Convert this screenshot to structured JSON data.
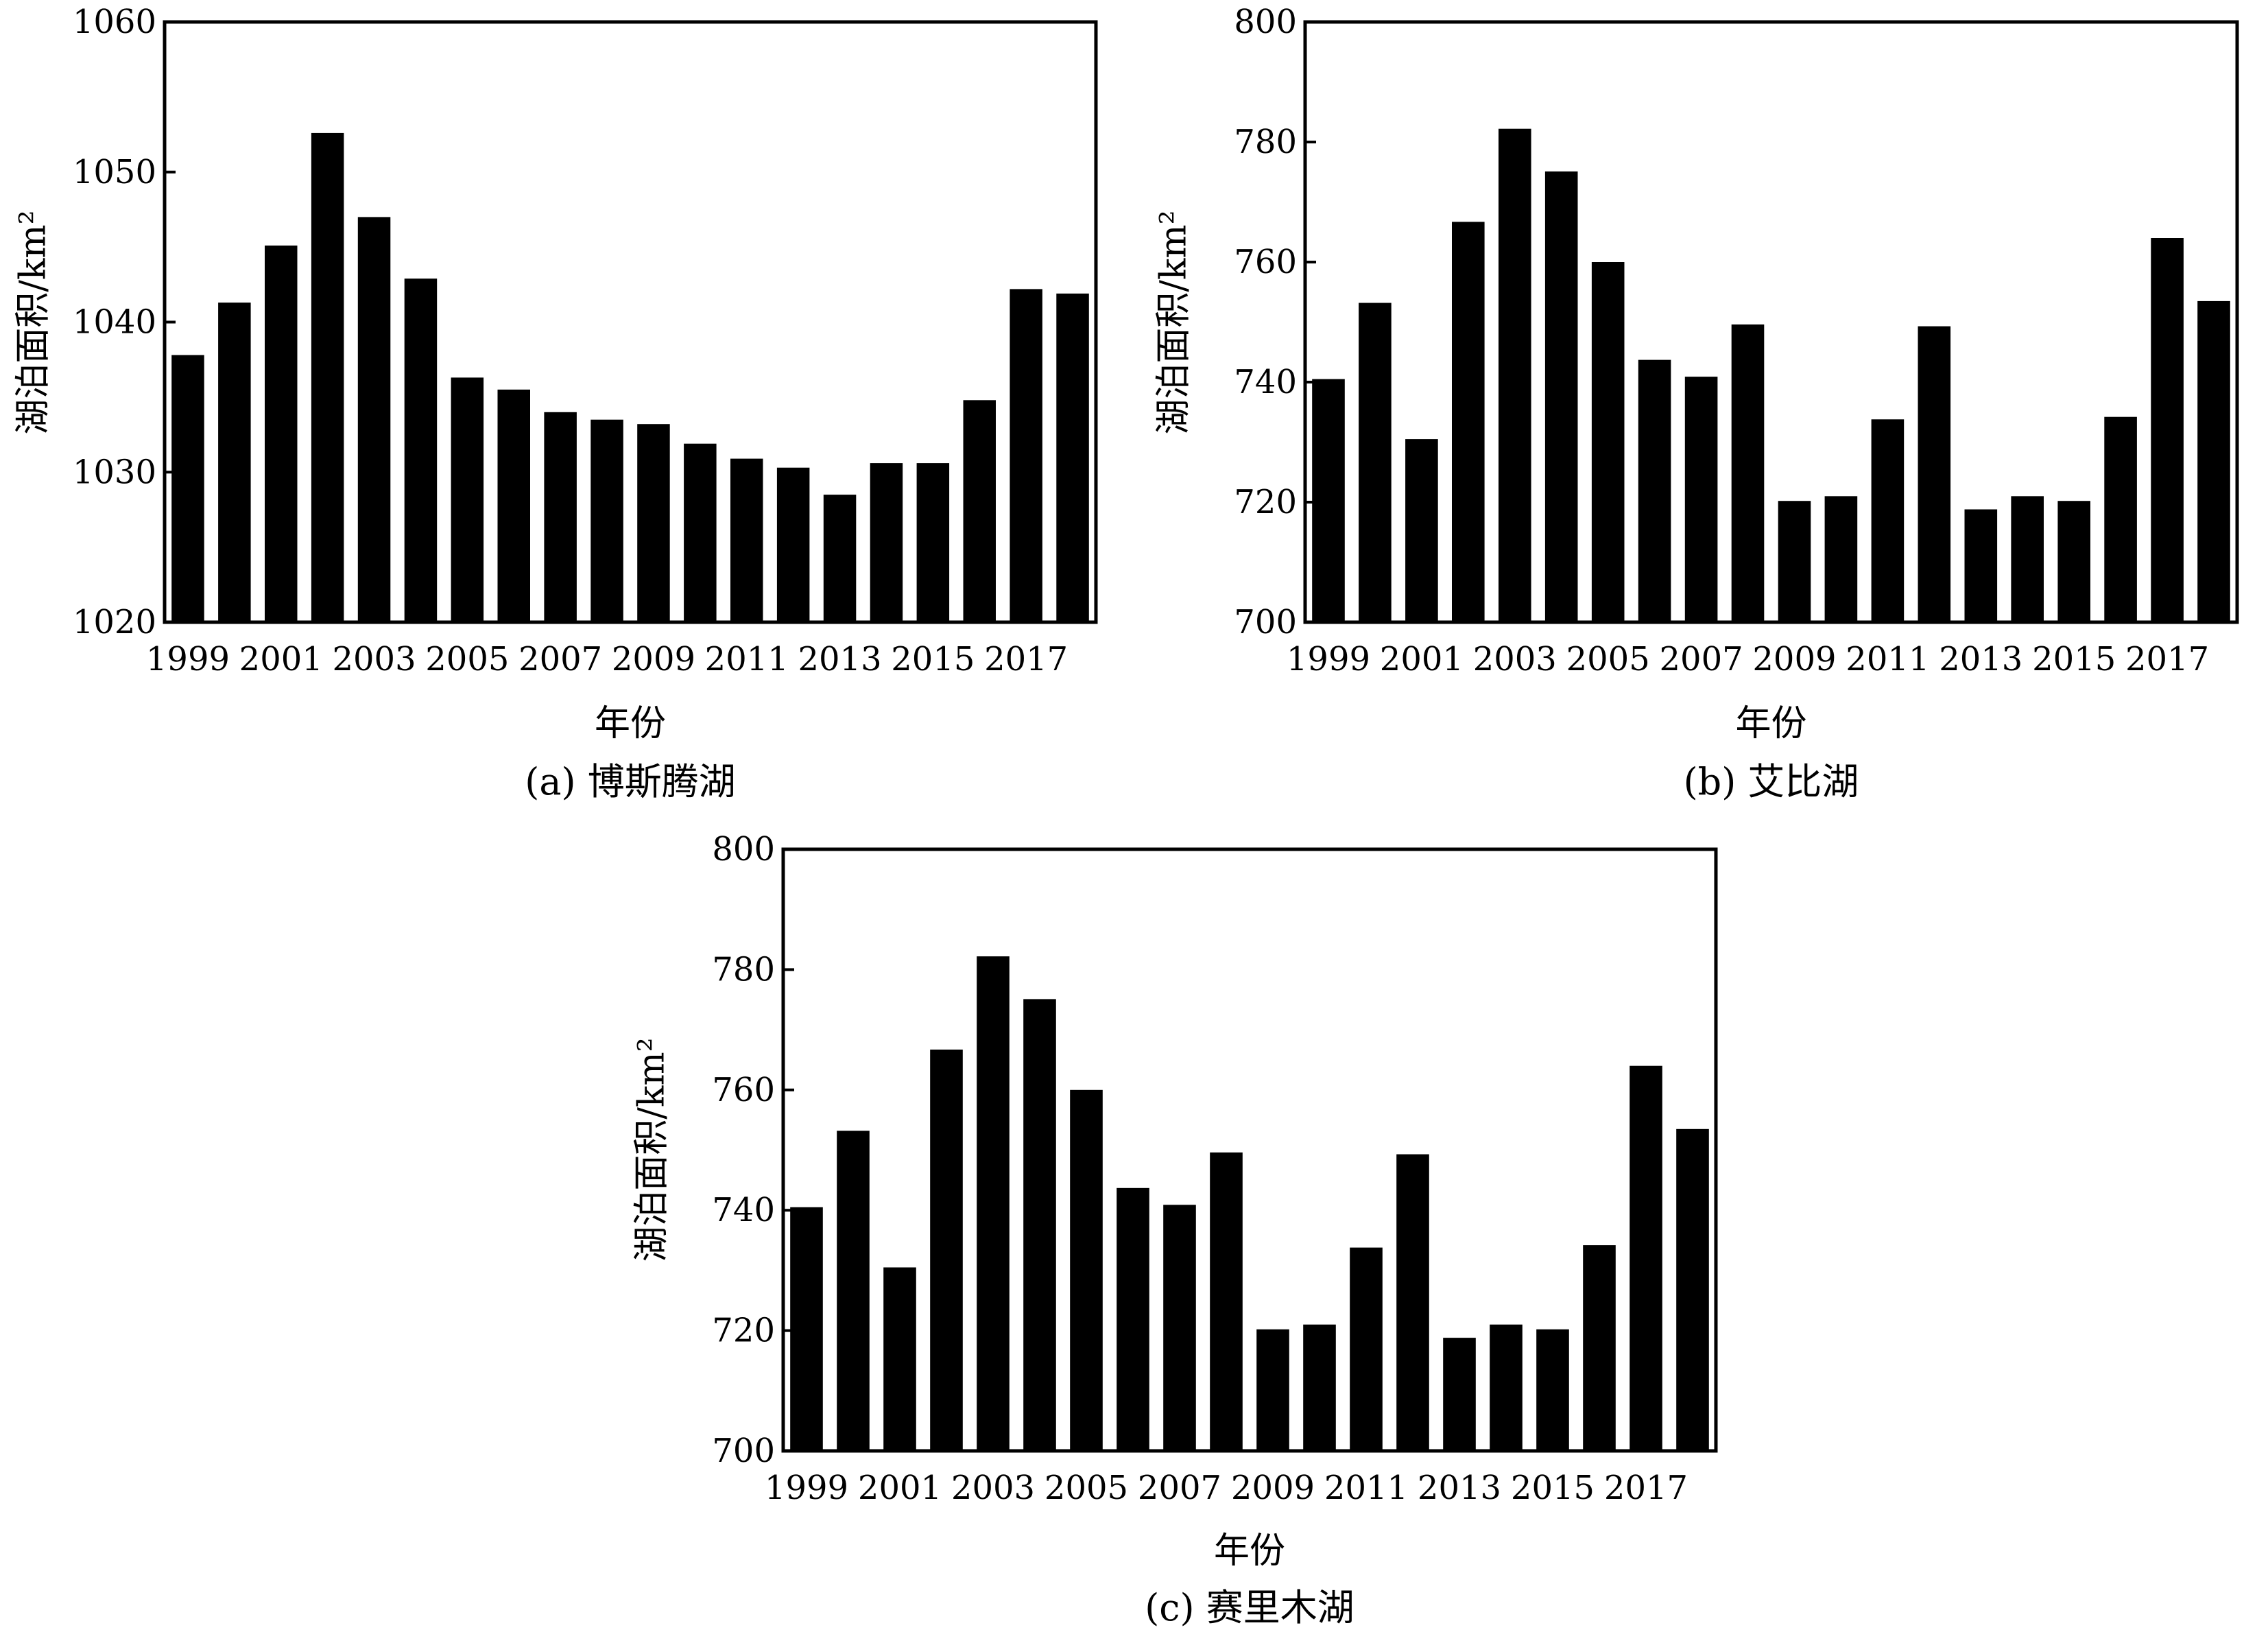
{
  "charts": [
    {
      "id": "a",
      "caption": "(a) 博斯腾湖",
      "chart_data": {
        "type": "bar",
        "title": "",
        "xlabel": "年份",
        "ylabel": "湖泊面积/km²",
        "ylim": [
          1020,
          1060
        ],
        "yticks": [
          1020,
          1030,
          1040,
          1050,
          1060
        ],
        "grid": false,
        "legend": "none",
        "bar_color": "#000000",
        "xtick_labels": [
          "1999",
          "2001",
          "2003",
          "2005",
          "2007",
          "2009",
          "2011",
          "2013",
          "2015",
          "2017"
        ],
        "categories": [
          "1999",
          "2000",
          "2001",
          "2002",
          "2003",
          "2004",
          "2005",
          "2006",
          "2007",
          "2008",
          "2009",
          "2010",
          "2011",
          "2012",
          "2013",
          "2014",
          "2015",
          "2016",
          "2017",
          "2018"
        ],
        "values": [
          1037.8,
          1041.3,
          1045.1,
          1052.6,
          1047.0,
          1042.9,
          1036.3,
          1035.5,
          1034.0,
          1033.5,
          1033.2,
          1031.9,
          1030.9,
          1030.3,
          1028.5,
          1030.6,
          1030.6,
          1034.8,
          1042.2,
          1041.9
        ]
      }
    },
    {
      "id": "b",
      "caption": "(b) 艾比湖",
      "chart_data": {
        "type": "bar",
        "title": "",
        "xlabel": "年份",
        "ylabel": "湖泊面积/km²",
        "ylim": [
          700,
          800
        ],
        "yticks": [
          700,
          720,
          740,
          760,
          780,
          800
        ],
        "grid": false,
        "legend": "none",
        "bar_color": "#000000",
        "xtick_labels": [
          "1999",
          "2001",
          "2003",
          "2005",
          "2007",
          "2009",
          "2011",
          "2013",
          "2015",
          "2017"
        ],
        "categories": [
          "1999",
          "2000",
          "2001",
          "2002",
          "2003",
          "2004",
          "2005",
          "2006",
          "2007",
          "2008",
          "2009",
          "2010",
          "2011",
          "2012",
          "2013",
          "2014",
          "2015",
          "2016",
          "2017",
          "2018"
        ],
        "values": [
          740.5,
          753.2,
          730.5,
          766.7,
          782.2,
          775.1,
          760.0,
          743.7,
          740.9,
          749.6,
          720.2,
          721.0,
          733.8,
          749.3,
          718.8,
          721.0,
          720.2,
          734.2,
          764.0,
          753.5
        ]
      }
    },
    {
      "id": "c",
      "caption": "(c) 赛里木湖",
      "chart_data": {
        "type": "bar",
        "title": "",
        "xlabel": "年份",
        "ylabel": "湖泊面积/km²",
        "ylim": [
          700,
          800
        ],
        "yticks": [
          700,
          720,
          740,
          760,
          780,
          800
        ],
        "grid": false,
        "legend": "none",
        "bar_color": "#000000",
        "xtick_labels": [
          "1999",
          "2001",
          "2003",
          "2005",
          "2007",
          "2009",
          "2011",
          "2013",
          "2015",
          "2017"
        ],
        "categories": [
          "1999",
          "2000",
          "2001",
          "2002",
          "2003",
          "2004",
          "2005",
          "2006",
          "2007",
          "2008",
          "2009",
          "2010",
          "2011",
          "2012",
          "2013",
          "2014",
          "2015",
          "2016",
          "2017",
          "2018"
        ],
        "values": [
          740.5,
          753.2,
          730.5,
          766.7,
          782.2,
          775.1,
          760.0,
          743.7,
          740.9,
          749.6,
          720.2,
          721.0,
          733.8,
          749.3,
          718.8,
          721.0,
          720.2,
          734.2,
          764.0,
          753.5
        ]
      }
    }
  ]
}
